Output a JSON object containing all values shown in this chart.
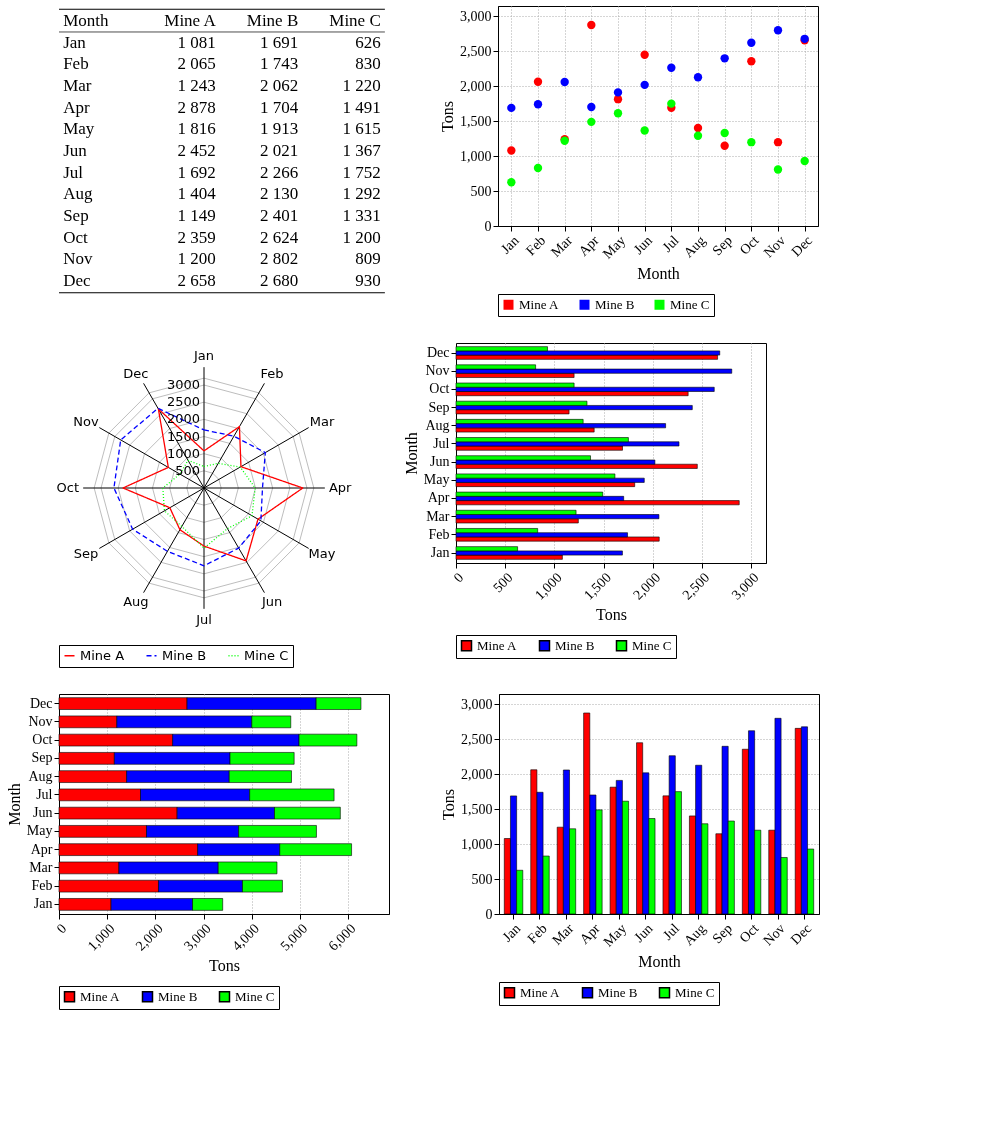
{
  "chart_data": [
    {
      "type": "other",
      "xlabel": "Month",
      "categories": [
        "Jan",
        "Feb",
        "Mar",
        "Apr",
        "May",
        "Jun",
        "Jul",
        "Aug",
        "Sep",
        "Oct",
        "Nov",
        "Dec"
      ],
      "series": [
        {
          "name": "Mine A",
          "values": [
            1081,
            2065,
            1243,
            2878,
            1816,
            2452,
            1692,
            1404,
            1149,
            2359,
            1200,
            2658
          ],
          "value_labels": [
            "1 081",
            "2 065",
            "1 243",
            "2 878",
            "1 816",
            "2 452",
            "1 692",
            "1 404",
            "1 149",
            "2 359",
            "1 200",
            "2 658"
          ]
        },
        {
          "name": "Mine B",
          "values": [
            1691,
            1743,
            2062,
            1704,
            1913,
            2021,
            2266,
            2130,
            2401,
            2624,
            2802,
            2680
          ],
          "value_labels": [
            "1 691",
            "1 743",
            "2 062",
            "1 704",
            "1 913",
            "2 021",
            "2 266",
            "2 130",
            "2 401",
            "2 624",
            "2 802",
            "2 680"
          ]
        },
        {
          "name": "Mine C",
          "values": [
            626,
            830,
            1220,
            1491,
            1615,
            1367,
            1752,
            1292,
            1331,
            1200,
            809,
            930
          ],
          "value_labels": [
            "626",
            "830",
            "1 220",
            "1 491",
            "1 615",
            "1 367",
            "1 752",
            "1 292",
            "1 331",
            "1 200",
            "809",
            "930"
          ]
        }
      ]
    },
    {
      "type": "scatter",
      "xlabel": "Month",
      "ylabel": "Tons",
      "categories": [
        "Jan",
        "Feb",
        "Mar",
        "Apr",
        "May",
        "Jun",
        "Jul",
        "Aug",
        "Sep",
        "Oct",
        "Nov",
        "Dec"
      ],
      "series": [
        {
          "name": "Mine A",
          "color": "#ff0000",
          "values": [
            1081,
            2065,
            1243,
            2878,
            1816,
            2452,
            1692,
            1404,
            1149,
            2359,
            1200,
            2658
          ]
        },
        {
          "name": "Mine B",
          "color": "#0000ff",
          "values": [
            1691,
            1743,
            2062,
            1704,
            1913,
            2021,
            2266,
            2130,
            2401,
            2624,
            2802,
            2680
          ]
        },
        {
          "name": "Mine C",
          "color": "#00ff00",
          "values": [
            626,
            830,
            1220,
            1491,
            1615,
            1367,
            1752,
            1292,
            1331,
            1200,
            809,
            930
          ]
        }
      ],
      "ylim": [
        0,
        3150
      ],
      "yticks": [
        0,
        500,
        {
          "value": 1000,
          "label": "1,000"
        },
        {
          "value": 1500,
          "label": "1,500"
        },
        {
          "value": 2000,
          "label": "2,000"
        },
        {
          "value": 2500,
          "label": "2,500"
        },
        {
          "value": 3000,
          "label": "3,000"
        }
      ],
      "grid": true,
      "legend": "bottom",
      "marker": "circle"
    },
    {
      "type": "radar",
      "categories": [
        "Jan",
        "Feb",
        "Mar",
        "Apr",
        "May",
        "Jun",
        "Jul",
        "Aug",
        "Sep",
        "Oct",
        "Nov",
        "Dec"
      ],
      "series": [
        {
          "name": "Mine A",
          "color": "#ff0000",
          "line_style": "solid",
          "values": [
            1081,
            2065,
            1243,
            2878,
            1816,
            2452,
            1692,
            1404,
            1149,
            2359,
            1200,
            2658
          ]
        },
        {
          "name": "Mine B",
          "color": "#0000ff",
          "line_style": "dashed",
          "values": [
            1691,
            1743,
            2062,
            1704,
            1913,
            2021,
            2266,
            2130,
            2401,
            2624,
            2802,
            2680
          ]
        },
        {
          "name": "Mine C",
          "color": "#00ff00",
          "line_style": "dotted",
          "values": [
            626,
            830,
            1220,
            1491,
            1615,
            1367,
            1752,
            1292,
            1331,
            1200,
            809,
            930
          ]
        }
      ],
      "ylim": [
        0,
        3200
      ],
      "yticks": [
        500,
        1000,
        1500,
        2000,
        2500,
        3000
      ],
      "grid": true,
      "legend": "bottom",
      "marker": "none"
    },
    {
      "type": "bar",
      "orientation": "horizontal",
      "xlabel": "Tons",
      "ylabel": "Month",
      "categories": [
        "Dec",
        "Nov",
        "Oct",
        "Sep",
        "Aug",
        "Jul",
        "Jun",
        "May",
        "Apr",
        "Mar",
        "Feb",
        "Jan"
      ],
      "series": [
        {
          "name": "Mine A",
          "color": "#ff0000",
          "values": [
            2658,
            1200,
            2359,
            1149,
            1404,
            1692,
            2452,
            1816,
            2878,
            1243,
            2065,
            1081
          ]
        },
        {
          "name": "Mine B",
          "color": "#0000ff",
          "values": [
            2680,
            2802,
            2624,
            2401,
            2130,
            2266,
            2021,
            1913,
            1704,
            2062,
            1743,
            1691
          ]
        },
        {
          "name": "Mine C",
          "color": "#00ff00",
          "values": [
            930,
            809,
            1200,
            1331,
            1292,
            1752,
            1367,
            1615,
            1491,
            1220,
            830,
            626
          ]
        }
      ],
      "xlim": [
        0,
        3150
      ],
      "xticks": [
        0,
        500,
        {
          "value": 1000,
          "label": "1,000"
        },
        {
          "value": 1500,
          "label": "1,500"
        },
        {
          "value": 2000,
          "label": "2,000"
        },
        {
          "value": 2500,
          "label": "2,500"
        },
        {
          "value": 3000,
          "label": "3,000"
        }
      ],
      "grid": "x",
      "legend": "bottom"
    },
    {
      "type": "bar",
      "orientation": "horizontal",
      "stacked": true,
      "xlabel": "Tons",
      "ylabel": "Month",
      "categories": [
        "Dec",
        "Nov",
        "Oct",
        "Sep",
        "Aug",
        "Jul",
        "Jun",
        "May",
        "Apr",
        "Mar",
        "Feb",
        "Jan"
      ],
      "series": [
        {
          "name": "Mine A",
          "color": "#ff0000",
          "values": [
            2658,
            1200,
            2359,
            1149,
            1404,
            1692,
            2452,
            1816,
            2878,
            1243,
            2065,
            1081
          ]
        },
        {
          "name": "Mine B",
          "color": "#0000ff",
          "values": [
            2680,
            2802,
            2624,
            2401,
            2130,
            2266,
            2021,
            1913,
            1704,
            2062,
            1743,
            1691
          ]
        },
        {
          "name": "Mine C",
          "color": "#00ff00",
          "values": [
            930,
            809,
            1200,
            1331,
            1292,
            1752,
            1367,
            1615,
            1491,
            1220,
            830,
            626
          ]
        }
      ],
      "xlim": [
        0,
        6850
      ],
      "xticks": [
        0,
        {
          "value": 1000,
          "label": "1,000"
        },
        {
          "value": 2000,
          "label": "2,000"
        },
        {
          "value": 3000,
          "label": "3,000"
        },
        {
          "value": 4000,
          "label": "4,000"
        },
        {
          "value": 5000,
          "label": "5,000"
        },
        {
          "value": 6000,
          "label": "6,000"
        }
      ],
      "grid": "x",
      "legend": "bottom"
    },
    {
      "type": "bar",
      "xlabel": "Month",
      "ylabel": "Tons",
      "categories": [
        "Jan",
        "Feb",
        "Mar",
        "Apr",
        "May",
        "Jun",
        "Jul",
        "Aug",
        "Sep",
        "Oct",
        "Nov",
        "Dec"
      ],
      "series": [
        {
          "name": "Mine A",
          "color": "#ff0000",
          "values": [
            1081,
            2065,
            1243,
            2878,
            1816,
            2452,
            1692,
            1404,
            1149,
            2359,
            1200,
            2658
          ]
        },
        {
          "name": "Mine B",
          "color": "#0000ff",
          "values": [
            1691,
            1743,
            2062,
            1704,
            1913,
            2021,
            2266,
            2130,
            2401,
            2624,
            2802,
            2680
          ]
        },
        {
          "name": "Mine C",
          "color": "#00ff00",
          "values": [
            626,
            830,
            1220,
            1491,
            1615,
            1367,
            1752,
            1292,
            1331,
            1200,
            809,
            930
          ]
        }
      ],
      "ylim": [
        0,
        3150
      ],
      "yticks": [
        0,
        500,
        {
          "value": 1000,
          "label": "1,000"
        },
        {
          "value": 1500,
          "label": "1,500"
        },
        {
          "value": 2000,
          "label": "2,000"
        },
        {
          "value": 2500,
          "label": "2,500"
        },
        {
          "value": 3000,
          "label": "3,000"
        }
      ],
      "grid": "y",
      "legend": "bottom"
    }
  ]
}
